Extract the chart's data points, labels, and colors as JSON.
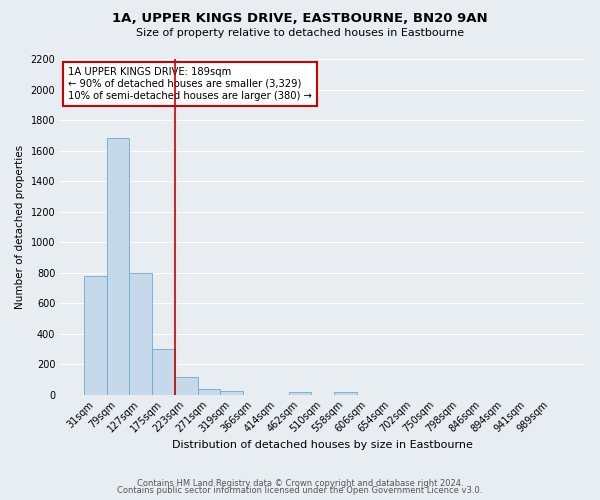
{
  "title": "1A, UPPER KINGS DRIVE, EASTBOURNE, BN20 9AN",
  "subtitle": "Size of property relative to detached houses in Eastbourne",
  "xlabel": "Distribution of detached houses by size in Eastbourne",
  "ylabel": "Number of detached properties",
  "footer_line1": "Contains HM Land Registry data © Crown copyright and database right 2024.",
  "footer_line2": "Contains public sector information licensed under the Open Government Licence v3.0.",
  "bar_labels": [
    "31sqm",
    "79sqm",
    "127sqm",
    "175sqm",
    "223sqm",
    "271sqm",
    "319sqm",
    "366sqm",
    "414sqm",
    "462sqm",
    "510sqm",
    "558sqm",
    "606sqm",
    "654sqm",
    "702sqm",
    "750sqm",
    "798sqm",
    "846sqm",
    "894sqm",
    "941sqm",
    "989sqm"
  ],
  "bar_values": [
    780,
    1680,
    800,
    300,
    115,
    38,
    25,
    0,
    0,
    20,
    0,
    20,
    0,
    0,
    0,
    0,
    0,
    0,
    0,
    0,
    0
  ],
  "bar_color": "#c6d9ea",
  "bar_edge_color": "#6aabce",
  "ylim": [
    0,
    2200
  ],
  "yticks": [
    0,
    200,
    400,
    600,
    800,
    1000,
    1200,
    1400,
    1600,
    1800,
    2000,
    2200
  ],
  "red_line_x": 3.5,
  "annotation_text_line1": "1A UPPER KINGS DRIVE: 189sqm",
  "annotation_text_line2": "← 90% of detached houses are smaller (3,329)",
  "annotation_text_line3": "10% of semi-detached houses are larger (380) →",
  "bg_color": "#e8edf2",
  "plot_bg_color": "#e8edf2",
  "grid_color": "#ffffff",
  "red_line_color": "#cc0000"
}
